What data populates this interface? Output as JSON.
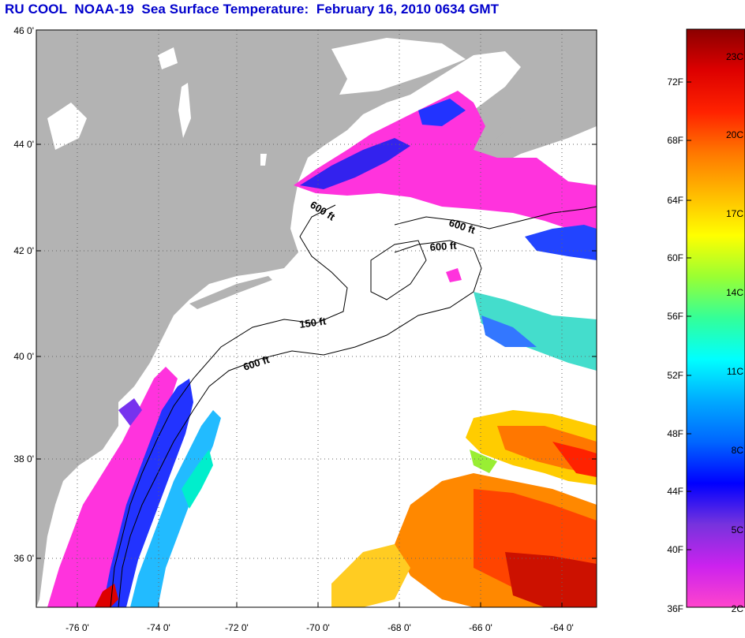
{
  "title": "RU COOL  NOAA-19  Sea Surface Temperature:  February 16, 2010 0634 GMT",
  "axes": {
    "lat_ticks": [
      "46 0'",
      "44 0'",
      "42 0'",
      "40 0'",
      "38 0'",
      "36 0'"
    ],
    "lon_ticks": [
      "-76 0'",
      "-74 0'",
      "-72 0'",
      "-70 0'",
      "-68 0'",
      "-66 0'",
      "-64 0'"
    ]
  },
  "contours": {
    "labels": [
      "600 ft",
      "600 ft",
      "600 ft",
      "150 ft",
      "600 ft"
    ]
  },
  "colorbar": {
    "fahrenheit": [
      "72F",
      "68F",
      "64F",
      "60F",
      "56F",
      "52F",
      "48F",
      "44F",
      "40F",
      "36F"
    ],
    "celsius": [
      "23C",
      "20C",
      "17C",
      "14C",
      "11C",
      "8C",
      "5C",
      "2C"
    ],
    "stops": [
      "#ff44cc",
      "#cc22ee",
      "#7733dd",
      "#0000ff",
      "#0066ff",
      "#00aaff",
      "#00ffff",
      "#33ff99",
      "#99ff33",
      "#ffff00",
      "#ffbb00",
      "#ff7700",
      "#ff2200",
      "#dd0000",
      "#8b0000"
    ]
  },
  "colors": {
    "land": "#b3b3b3",
    "ocean": "#ffffff",
    "title": "#0000cc"
  }
}
